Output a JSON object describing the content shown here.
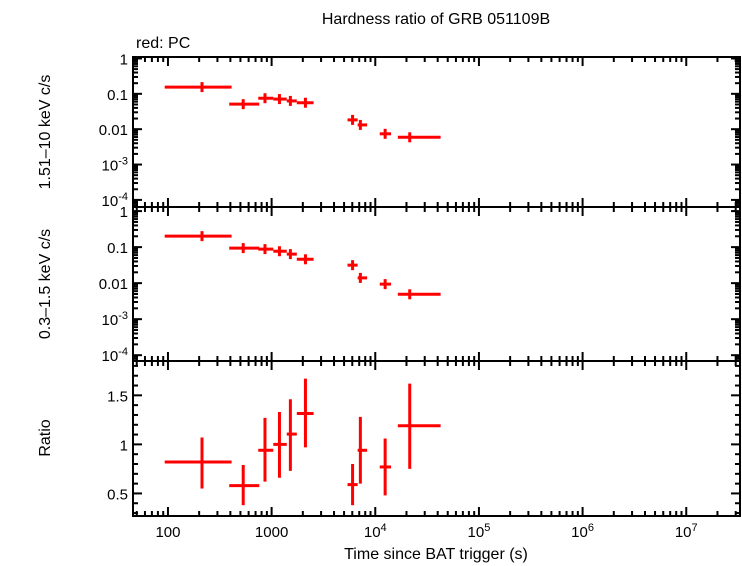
{
  "title": "Hardness ratio of GRB 051109B",
  "subtitle": "red: PC",
  "colors": {
    "series": "#ff0000",
    "axes": "#000000"
  },
  "chart_data": [
    {
      "type": "scatter",
      "panel": "top",
      "ylabel": "1.51–10 keV c/s",
      "xscale": "log",
      "yscale": "log",
      "xlim": [
        46,
        33000000
      ],
      "ylim": [
        6.3e-05,
        1.1
      ],
      "ytick_labels": [
        {
          "v": 1,
          "t": "1"
        },
        {
          "v": 0.1,
          "t": "0.1"
        },
        {
          "v": 0.01,
          "t": "0.01"
        },
        {
          "v": 0.001,
          "t": "10",
          "e": "-3"
        },
        {
          "v": 0.0001,
          "t": "10",
          "e": "-4"
        }
      ],
      "points": [
        {
          "x": 213,
          "xlo": 93,
          "xhi": 411,
          "y": 0.155,
          "ylo": 0.135,
          "yhi": 0.178
        },
        {
          "x": 532,
          "xlo": 390,
          "xhi": 760,
          "y": 0.051,
          "ylo": 0.043,
          "yhi": 0.06
        },
        {
          "x": 863,
          "xlo": 743,
          "xhi": 1038,
          "y": 0.075,
          "ylo": 0.063,
          "yhi": 0.09
        },
        {
          "x": 1190,
          "xlo": 1038,
          "xhi": 1400,
          "y": 0.071,
          "ylo": 0.06,
          "yhi": 0.085
        },
        {
          "x": 1517,
          "xlo": 1400,
          "xhi": 1750,
          "y": 0.063,
          "ylo": 0.053,
          "yhi": 0.075
        },
        {
          "x": 2120,
          "xlo": 1750,
          "xhi": 2540,
          "y": 0.056,
          "ylo": 0.048,
          "yhi": 0.066
        },
        {
          "x": 6040,
          "xlo": 5400,
          "xhi": 6760,
          "y": 0.0183,
          "ylo": 0.0145,
          "yhi": 0.023
        },
        {
          "x": 7180,
          "xlo": 6760,
          "xhi": 8340,
          "y": 0.0132,
          "ylo": 0.0105,
          "yhi": 0.0165
        },
        {
          "x": 12450,
          "xlo": 11040,
          "xhi": 14200,
          "y": 0.0074,
          "ylo": 0.0058,
          "yhi": 0.0094
        },
        {
          "x": 21500,
          "xlo": 16500,
          "xhi": 42700,
          "y": 0.0059,
          "ylo": 0.0047,
          "yhi": 0.0074
        }
      ]
    },
    {
      "type": "scatter",
      "panel": "middle",
      "ylabel": "0.3–1.5 keV c/s",
      "xscale": "log",
      "yscale": "log",
      "xlim": [
        46,
        33000000
      ],
      "ylim": [
        6.9e-05,
        1.3
      ],
      "ytick_labels": [
        {
          "v": 1,
          "t": "1"
        },
        {
          "v": 0.1,
          "t": "0.1"
        },
        {
          "v": 0.01,
          "t": "0.01"
        },
        {
          "v": 0.001,
          "t": "10",
          "e": "-3"
        },
        {
          "v": 0.0001,
          "t": "10",
          "e": "-4"
        }
      ],
      "points": [
        {
          "x": 213,
          "xlo": 93,
          "xhi": 411,
          "y": 0.202,
          "ylo": 0.185,
          "yhi": 0.22
        },
        {
          "x": 532,
          "xlo": 390,
          "xhi": 760,
          "y": 0.094,
          "ylo": 0.084,
          "yhi": 0.105
        },
        {
          "x": 863,
          "xlo": 743,
          "xhi": 1038,
          "y": 0.088,
          "ylo": 0.076,
          "yhi": 0.101
        },
        {
          "x": 1190,
          "xlo": 1038,
          "xhi": 1400,
          "y": 0.077,
          "ylo": 0.066,
          "yhi": 0.09
        },
        {
          "x": 1517,
          "xlo": 1400,
          "xhi": 1750,
          "y": 0.064,
          "ylo": 0.054,
          "yhi": 0.075
        },
        {
          "x": 2120,
          "xlo": 1750,
          "xhi": 2540,
          "y": 0.046,
          "ylo": 0.04,
          "yhi": 0.053
        },
        {
          "x": 6040,
          "xlo": 5400,
          "xhi": 6760,
          "y": 0.0316,
          "ylo": 0.026,
          "yhi": 0.038
        },
        {
          "x": 7180,
          "xlo": 6760,
          "xhi": 8340,
          "y": 0.014,
          "ylo": 0.0113,
          "yhi": 0.0175
        },
        {
          "x": 12450,
          "xlo": 11040,
          "xhi": 14200,
          "y": 0.0094,
          "ylo": 0.0078,
          "yhi": 0.0113
        },
        {
          "x": 21500,
          "xlo": 16500,
          "xhi": 42700,
          "y": 0.0049,
          "ylo": 0.0039,
          "yhi": 0.0062
        }
      ]
    },
    {
      "type": "scatter",
      "panel": "bottom",
      "ylabel": "Ratio",
      "xlabel": "Time since BAT trigger (s)",
      "xscale": "log",
      "yscale": "linear",
      "xlim": [
        46,
        33000000
      ],
      "ylim": [
        0.27,
        1.85
      ],
      "ytick_labels": [
        {
          "v": 1.5,
          "t": "1.5"
        },
        {
          "v": 1,
          "t": "1"
        },
        {
          "v": 0.5,
          "t": "0.5"
        }
      ],
      "xtick_labels": [
        {
          "v": 100,
          "t": "100"
        },
        {
          "v": 1000,
          "t": "1000"
        },
        {
          "v": 10000,
          "t": "10",
          "e": "4"
        },
        {
          "v": 100000,
          "t": "10",
          "e": "5"
        },
        {
          "v": 1000000,
          "t": "10",
          "e": "6"
        },
        {
          "v": 10000000,
          "t": "10",
          "e": "7"
        }
      ],
      "points": [
        {
          "x": 213,
          "xlo": 93,
          "xhi": 411,
          "y": 0.82,
          "ylo": 0.55,
          "yhi": 1.07
        },
        {
          "x": 532,
          "xlo": 390,
          "xhi": 760,
          "y": 0.58,
          "ylo": 0.38,
          "yhi": 0.79
        },
        {
          "x": 863,
          "xlo": 743,
          "xhi": 1038,
          "y": 0.94,
          "ylo": 0.62,
          "yhi": 1.27
        },
        {
          "x": 1190,
          "xlo": 1038,
          "xhi": 1400,
          "y": 1.0,
          "ylo": 0.66,
          "yhi": 1.33
        },
        {
          "x": 1517,
          "xlo": 1400,
          "xhi": 1750,
          "y": 1.105,
          "ylo": 0.73,
          "yhi": 1.46
        },
        {
          "x": 2120,
          "xlo": 1750,
          "xhi": 2540,
          "y": 1.315,
          "ylo": 0.97,
          "yhi": 1.67
        },
        {
          "x": 6040,
          "xlo": 5400,
          "xhi": 6760,
          "y": 0.59,
          "ylo": 0.38,
          "yhi": 0.8
        },
        {
          "x": 7180,
          "xlo": 6760,
          "xhi": 8340,
          "y": 0.94,
          "ylo": 0.6,
          "yhi": 1.28
        },
        {
          "x": 12450,
          "xlo": 11040,
          "xhi": 14200,
          "y": 0.77,
          "ylo": 0.48,
          "yhi": 1.06
        },
        {
          "x": 21500,
          "xlo": 16500,
          "xhi": 42700,
          "y": 1.19,
          "ylo": 0.75,
          "yhi": 1.62
        }
      ]
    }
  ]
}
